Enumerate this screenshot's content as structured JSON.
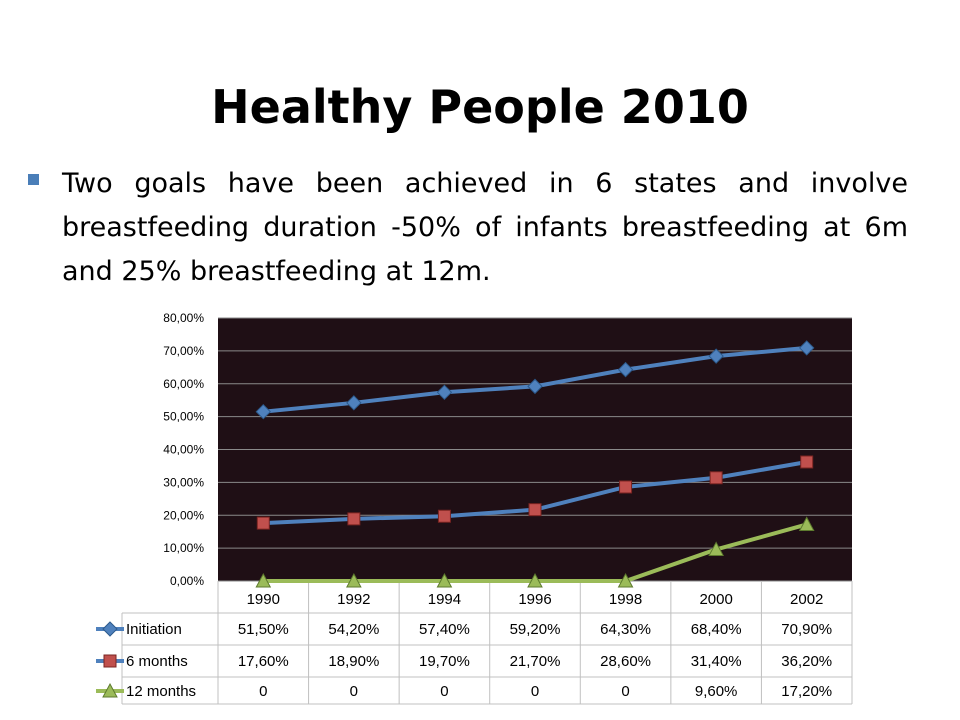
{
  "slide": {
    "title": "Healthy People 2010",
    "bullet": "Two goals have been achieved in 6 states and involve breastfeeding duration -50% of infants breastfeeding at 6m and 25% breastfeeding at 12m."
  },
  "chart_data": {
    "type": "line",
    "title": "",
    "xlabel": "",
    "ylabel": "",
    "categories": [
      "1990",
      "1992",
      "1994",
      "1996",
      "1998",
      "2000",
      "2002"
    ],
    "ylim": [
      0,
      80
    ],
    "yticks": [
      "0,00%",
      "10,00%",
      "20,00%",
      "30,00%",
      "40,00%",
      "50,00%",
      "60,00%",
      "70,00%",
      "80,00%"
    ],
    "grid": true,
    "legend": "data-table",
    "plot_background": "#1f0f15",
    "series": [
      {
        "name": "Initiation",
        "marker": "diamond",
        "color": "#4f81bd",
        "values": [
          51.5,
          54.2,
          57.4,
          59.2,
          64.3,
          68.4,
          70.9
        ],
        "labels": [
          "51,50%",
          "54,20%",
          "57,40%",
          "59,20%",
          "64,30%",
          "68,40%",
          "70,90%"
        ]
      },
      {
        "name": "6 months",
        "marker": "square",
        "color": "#c0504d",
        "line_color": "#4f81bd",
        "values": [
          17.6,
          18.9,
          19.7,
          21.7,
          28.6,
          31.4,
          36.2
        ],
        "labels": [
          "17,60%",
          "18,90%",
          "19,70%",
          "21,70%",
          "28,60%",
          "31,40%",
          "36,20%"
        ]
      },
      {
        "name": "12 months",
        "marker": "triangle",
        "color": "#9bbb59",
        "values": [
          0,
          0,
          0,
          0,
          0,
          9.6,
          17.2
        ],
        "labels": [
          "0",
          "0",
          "0",
          "0",
          "0",
          "9,60%",
          "17,20%"
        ]
      }
    ]
  }
}
